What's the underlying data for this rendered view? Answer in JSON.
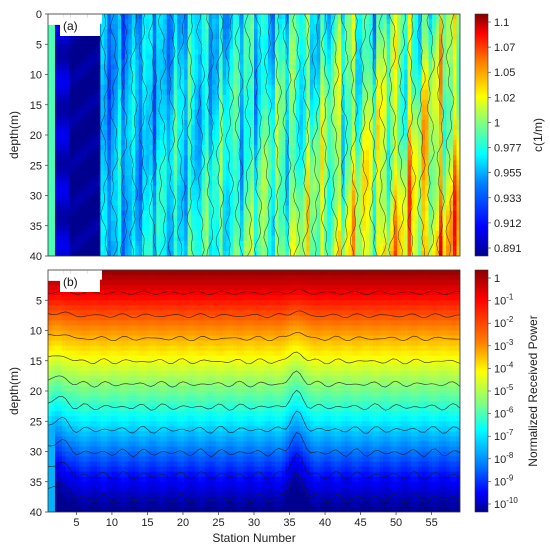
{
  "figure": {
    "xlabel": "Station Number"
  },
  "chart_data": [
    {
      "type": "heatmap",
      "panel_label": "(a)",
      "title": "",
      "xlabel": "",
      "ylabel": "depth(m)",
      "xlim": [
        1,
        59
      ],
      "ylim": [
        0,
        40
      ],
      "y_reversed": true,
      "y_ticks": [
        0,
        5,
        10,
        15,
        20,
        25,
        30,
        35,
        40
      ],
      "x_ticks": [],
      "colorbar": {
        "label": "c(1/m)",
        "ticks": [
          "1.1",
          "1.07",
          "1.05",
          "1.02",
          "1",
          "0.977",
          "0.955",
          "0.933",
          "0.912",
          "0.891"
        ],
        "range": [
          0.88,
          1.115
        ]
      },
      "colormap": [
        "#00008f",
        "#0000ff",
        "#0080ff",
        "#00ffff",
        "#80ff80",
        "#ffff00",
        "#ff8000",
        "#ff0000",
        "#800000"
      ],
      "contours": true
    },
    {
      "type": "heatmap",
      "panel_label": "(b)",
      "title": "",
      "xlabel": "Station Number",
      "ylabel": "depth(m)",
      "xlim": [
        1,
        59
      ],
      "ylim": [
        0,
        40
      ],
      "y_reversed": true,
      "y_ticks": [
        5,
        10,
        15,
        20,
        25,
        30,
        35,
        40
      ],
      "x_ticks": [
        5,
        10,
        15,
        20,
        25,
        30,
        35,
        40,
        45,
        50,
        55
      ],
      "colorbar": {
        "label": "Normalized Received Power",
        "ticks": [
          {
            "base": "1",
            "exp": ""
          },
          {
            "base": "10",
            "exp": "-1"
          },
          {
            "base": "10",
            "exp": "-2"
          },
          {
            "base": "10",
            "exp": "-3"
          },
          {
            "base": "10",
            "exp": "-4"
          },
          {
            "base": "10",
            "exp": "-5"
          },
          {
            "base": "10",
            "exp": "-6"
          },
          {
            "base": "10",
            "exp": "-7"
          },
          {
            "base": "10",
            "exp": "-8"
          },
          {
            "base": "10",
            "exp": "-9"
          },
          {
            "base": "10",
            "exp": "-10"
          }
        ],
        "log_scale": true
      },
      "colormap": [
        "#00008f",
        "#0000ff",
        "#0080ff",
        "#00ffff",
        "#80ff80",
        "#ffff00",
        "#ff8000",
        "#ff0000",
        "#800000"
      ],
      "contours": true
    }
  ]
}
